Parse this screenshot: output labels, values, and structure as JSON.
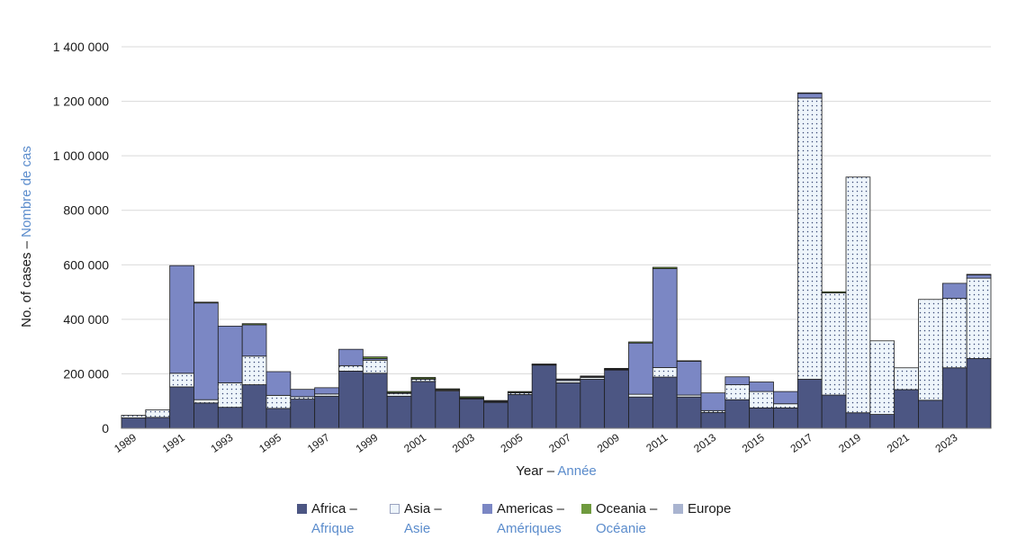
{
  "chart_data": {
    "type": "bar",
    "stacked": true,
    "title": "",
    "ylabel_en": "No. of cases –",
    "ylabel_fr": "Nombre de cas",
    "xlabel_en": "Year –",
    "xlabel_fr": "Année",
    "ylim": [
      0,
      1400000
    ],
    "yticks": [
      0,
      200000,
      400000,
      600000,
      800000,
      1000000,
      1200000,
      1400000
    ],
    "ytick_labels": [
      "0",
      "200 000",
      "400 000",
      "600 000",
      "800 000",
      "1 000 000",
      "1 200 000",
      "1 400 000"
    ],
    "grid": true,
    "legend_position": "bottom",
    "x": [
      1989,
      1990,
      1991,
      1992,
      1993,
      1994,
      1995,
      1996,
      1997,
      1998,
      1999,
      2000,
      2001,
      2002,
      2003,
      2004,
      2005,
      2006,
      2007,
      2008,
      2009,
      2010,
      2011,
      2012,
      2013,
      2014,
      2015,
      2016,
      2017,
      2018,
      2019,
      2020,
      2021,
      2022,
      2023,
      2024
    ],
    "xtick_labels": [
      "1989",
      "1991",
      "1993",
      "1995",
      "1997",
      "1999",
      "2001",
      "2003",
      "2005",
      "2007",
      "2009",
      "2011",
      "2013",
      "2015",
      "2017",
      "2019",
      "2021",
      "2023"
    ],
    "series": [
      {
        "key": "africa",
        "name_en": "Africa –",
        "name_fr": "Afrique",
        "color": "#4c5683",
        "values": [
          38000,
          40000,
          152000,
          93000,
          77000,
          160000,
          73000,
          107000,
          118000,
          210000,
          202000,
          118000,
          172000,
          137000,
          108000,
          95000,
          124000,
          232000,
          167000,
          180000,
          214000,
          115000,
          188000,
          115000,
          58000,
          105000,
          75000,
          75000,
          180000,
          122000,
          57000,
          51000,
          142000,
          103000,
          222000,
          256000
        ]
      },
      {
        "key": "asia",
        "name_en": "Asia –",
        "name_fr": "Asie",
        "color": "#eef5fb",
        "values": [
          10000,
          28000,
          50000,
          12000,
          90000,
          105000,
          48000,
          9000,
          8000,
          20000,
          48000,
          10000,
          8000,
          4000,
          2000,
          2000,
          6000,
          2000,
          8000,
          7000,
          2000,
          10000,
          35000,
          7000,
          7000,
          55000,
          60000,
          15000,
          1032000,
          375000,
          865000,
          270000,
          80000,
          370000,
          255000,
          295000
        ]
      },
      {
        "key": "americas",
        "name_en": "Americas –",
        "name_fr": "Amériques",
        "color": "#7b87c4",
        "values": [
          0,
          0,
          395000,
          355000,
          208000,
          115000,
          87000,
          27000,
          23000,
          60000,
          6000,
          3000,
          2000,
          1000,
          2000,
          3000,
          2000,
          0,
          4000,
          3000,
          2000,
          188000,
          363000,
          124000,
          65000,
          29000,
          35000,
          45000,
          17000,
          0,
          0,
          0,
          0,
          0,
          55000,
          12000
        ]
      },
      {
        "key": "oceania",
        "name_en": "Oceania –",
        "name_fr": "Océanie",
        "color": "#6f9a3e",
        "values": [
          0,
          0,
          0,
          3000,
          0,
          4000,
          0,
          0,
          0,
          0,
          6000,
          4000,
          5000,
          3000,
          4000,
          2000,
          3000,
          2000,
          2000,
          2000,
          2000,
          4000,
          5000,
          2000,
          0,
          0,
          0,
          0,
          2000,
          4000,
          0,
          0,
          0,
          0,
          0,
          2000
        ]
      },
      {
        "key": "europe",
        "name_en": "Europe",
        "name_fr": "",
        "color": "#a9b4d0",
        "values": [
          0,
          0,
          0,
          0,
          0,
          0,
          0,
          0,
          0,
          0,
          0,
          0,
          0,
          0,
          0,
          0,
          0,
          0,
          0,
          0,
          0,
          0,
          0,
          0,
          0,
          0,
          0,
          0,
          0,
          0,
          0,
          0,
          0,
          0,
          0,
          0
        ]
      }
    ]
  }
}
